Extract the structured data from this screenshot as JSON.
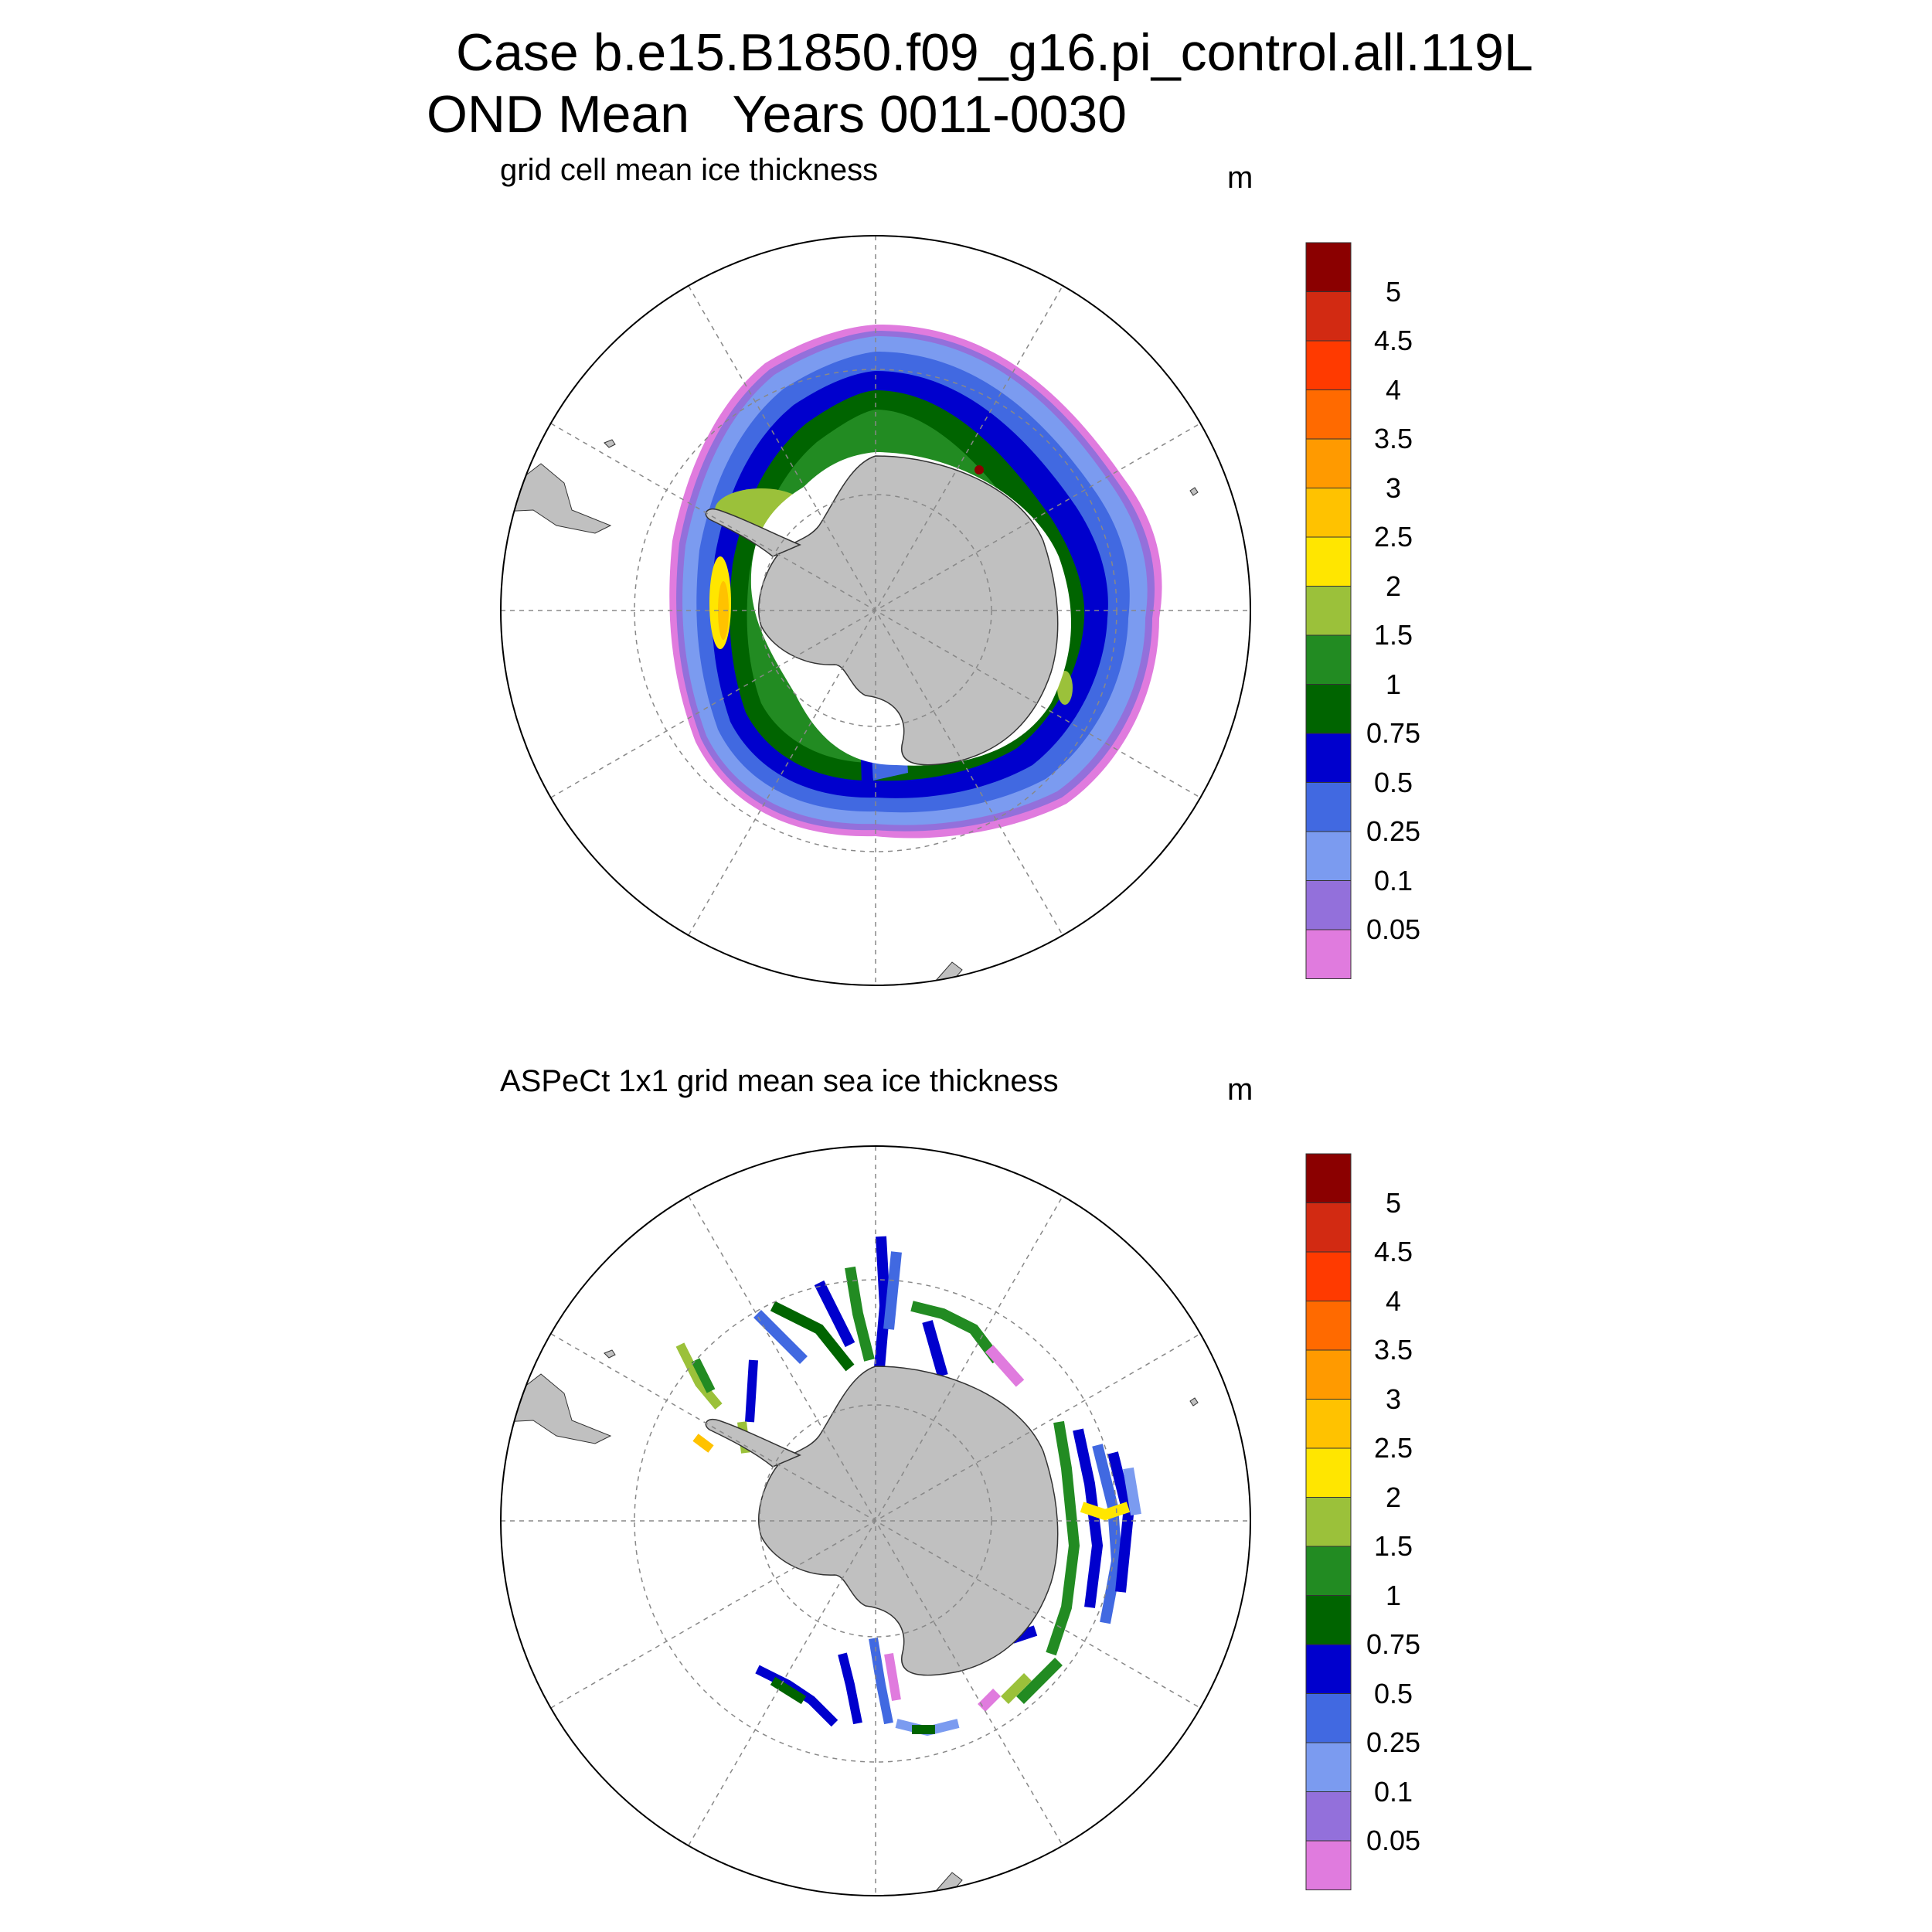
{
  "title": {
    "line1": "Case b.e15.B1850.f09_g16.pi_control.all.119L",
    "line2": "OND Mean   Years 0011-0030"
  },
  "panels": [
    {
      "name": "model",
      "title": "grid cell mean ice thickness",
      "units": "m"
    },
    {
      "name": "obs",
      "title": "ASPeCt 1x1 grid mean sea ice thickness",
      "units": "m"
    }
  ],
  "colorbar": {
    "labels": [
      "5",
      "4.5",
      "4",
      "3.5",
      "3",
      "2.5",
      "2",
      "1.5",
      "1",
      "0.75",
      "0.5",
      "0.25",
      "0.1",
      "0.05"
    ],
    "colors": [
      "#8B0000",
      "#D22A12",
      "#FF3A00",
      "#FF6A00",
      "#FF9A00",
      "#FFC200",
      "#FFE600",
      "#9BC13A",
      "#228B22",
      "#006400",
      "#0000CD",
      "#4169E1",
      "#7B9BF0",
      "#9370DB",
      "#E07BDE"
    ]
  },
  "colors": {
    "land": "#C0C0C0",
    "grid": "#888888"
  }
}
